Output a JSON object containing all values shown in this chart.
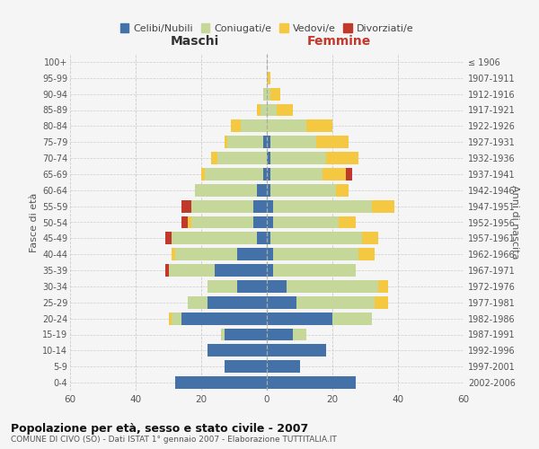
{
  "age_groups": [
    "0-4",
    "5-9",
    "10-14",
    "15-19",
    "20-24",
    "25-29",
    "30-34",
    "35-39",
    "40-44",
    "45-49",
    "50-54",
    "55-59",
    "60-64",
    "65-69",
    "70-74",
    "75-79",
    "80-84",
    "85-89",
    "90-94",
    "95-99",
    "100+"
  ],
  "birth_years": [
    "2002-2006",
    "1997-2001",
    "1992-1996",
    "1987-1991",
    "1982-1986",
    "1977-1981",
    "1972-1976",
    "1967-1971",
    "1962-1966",
    "1957-1961",
    "1952-1956",
    "1947-1951",
    "1942-1946",
    "1937-1941",
    "1932-1936",
    "1927-1931",
    "1922-1926",
    "1917-1921",
    "1912-1916",
    "1907-1911",
    "≤ 1906"
  ],
  "males": {
    "celibe": [
      28,
      13,
      18,
      13,
      26,
      18,
      9,
      16,
      9,
      3,
      4,
      4,
      3,
      1,
      0,
      1,
      0,
      0,
      0,
      0,
      0
    ],
    "coniugato": [
      0,
      0,
      0,
      1,
      3,
      6,
      9,
      14,
      19,
      26,
      19,
      19,
      19,
      18,
      15,
      11,
      8,
      2,
      1,
      0,
      0
    ],
    "vedovo": [
      0,
      0,
      0,
      0,
      1,
      0,
      0,
      0,
      1,
      0,
      1,
      0,
      0,
      1,
      2,
      1,
      3,
      1,
      0,
      0,
      0
    ],
    "divorziato": [
      0,
      0,
      0,
      0,
      0,
      0,
      0,
      1,
      0,
      2,
      2,
      3,
      0,
      0,
      0,
      0,
      0,
      0,
      0,
      0,
      0
    ]
  },
  "females": {
    "nubile": [
      27,
      10,
      18,
      8,
      20,
      9,
      6,
      2,
      2,
      1,
      2,
      2,
      1,
      1,
      1,
      1,
      0,
      0,
      0,
      0,
      0
    ],
    "coniugata": [
      0,
      0,
      0,
      4,
      12,
      24,
      28,
      25,
      26,
      28,
      20,
      30,
      20,
      16,
      17,
      14,
      12,
      3,
      1,
      0,
      0
    ],
    "vedova": [
      0,
      0,
      0,
      0,
      0,
      4,
      3,
      0,
      5,
      5,
      5,
      7,
      4,
      7,
      10,
      10,
      8,
      5,
      3,
      1,
      0
    ],
    "divorziata": [
      0,
      0,
      0,
      0,
      0,
      0,
      0,
      0,
      0,
      0,
      0,
      0,
      0,
      2,
      0,
      0,
      0,
      0,
      0,
      0,
      0
    ]
  },
  "colors": {
    "celibe": "#4472a8",
    "coniugato": "#c5d89a",
    "vedovo": "#f5c842",
    "divorziato": "#c0392b"
  },
  "xlim": 60,
  "title": "Popolazione per età, sesso e stato civile - 2007",
  "subtitle": "COMUNE DI CIVO (SO) - Dati ISTAT 1° gennaio 2007 - Elaborazione TUTTITALIA.IT",
  "xlabel_left": "Maschi",
  "xlabel_right": "Femmine",
  "ylabel_left": "Fasce di età",
  "ylabel_right": "Anni di nascita",
  "legend_labels": [
    "Celibi/Nubili",
    "Coniugati/e",
    "Vedovi/e",
    "Divorziati/e"
  ],
  "bg_color": "#f5f5f5",
  "grid_color": "#cccccc"
}
